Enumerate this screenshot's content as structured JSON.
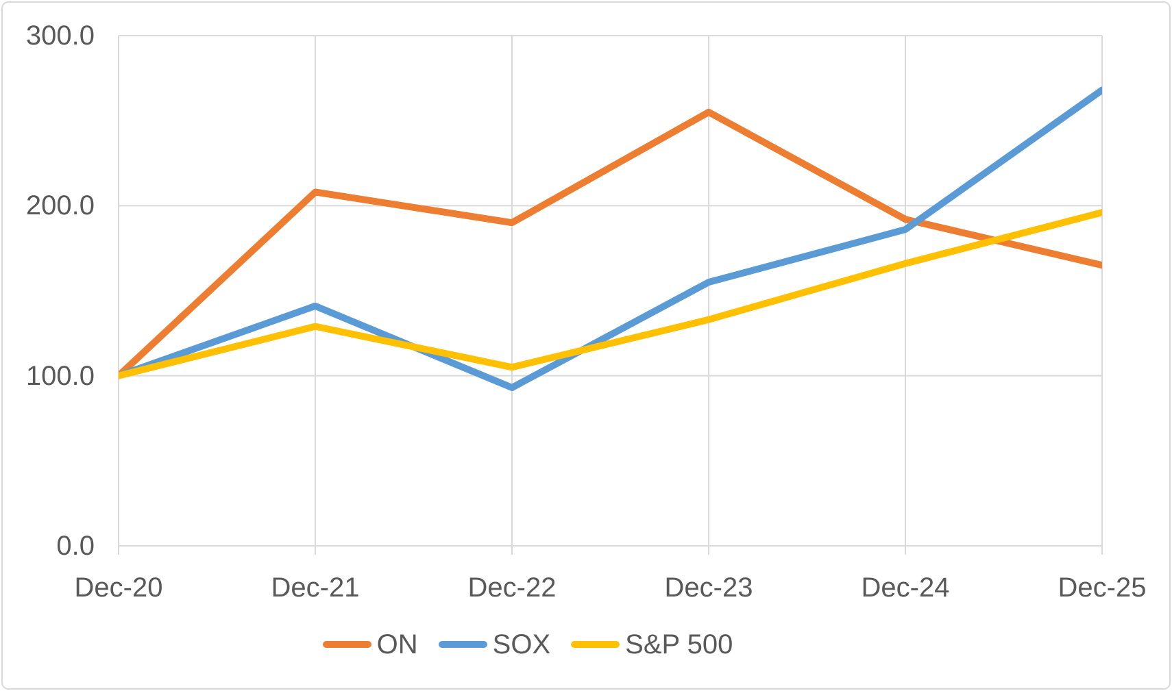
{
  "chart_data": {
    "type": "line",
    "title": "",
    "xlabel": "",
    "ylabel": "",
    "categories": [
      "Dec-20",
      "Dec-21",
      "Dec-22",
      "Dec-23",
      "Dec-24",
      "Dec-25"
    ],
    "series": [
      {
        "name": "ON",
        "color": "#ED7D31",
        "values": [
          100.0,
          208,
          190,
          255,
          192,
          165
        ]
      },
      {
        "name": "SOX",
        "color": "#5B9BD5",
        "values": [
          100.0,
          141,
          93,
          155,
          186,
          268
        ]
      },
      {
        "name": "S&P 500",
        "color": "#FFC000",
        "values": [
          100.0,
          129,
          105,
          133,
          166,
          196
        ]
      }
    ],
    "y_ticks": [
      {
        "label": "300.0",
        "value": 300
      },
      {
        "label": "200.0",
        "value": 200
      },
      {
        "label": "100.0",
        "value": 100
      },
      {
        "label": "0.0",
        "value": 0
      }
    ],
    "ylim": [
      0,
      300
    ],
    "grid": true,
    "legend_position": "bottom",
    "line_width": 10
  },
  "styles": {
    "gridline_color": "#D9D9D9",
    "axis_text_color": "#595959",
    "frame_border_color": "#D9D9D9",
    "background": "#FFFFFF"
  }
}
